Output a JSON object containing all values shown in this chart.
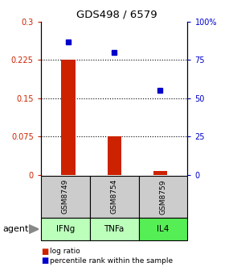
{
  "title": "GDS498 / 6579",
  "samples": [
    "GSM8749",
    "GSM8754",
    "GSM8759"
  ],
  "agents": [
    "IFNg",
    "TNFa",
    "IL4"
  ],
  "log_ratios": [
    0.225,
    0.075,
    0.008
  ],
  "percentile_ranks": [
    87,
    80,
    55
  ],
  "ylim_left": [
    0,
    0.3
  ],
  "ylim_right": [
    0,
    100
  ],
  "yticks_left": [
    0,
    0.075,
    0.15,
    0.225,
    0.3
  ],
  "ytick_labels_left": [
    "0",
    "0.075",
    "0.15",
    "0.225",
    "0.3"
  ],
  "yticks_right": [
    0,
    25,
    50,
    75,
    100
  ],
  "ytick_labels_right": [
    "0",
    "25",
    "50",
    "75",
    "100%"
  ],
  "bar_color": "#cc2200",
  "dot_color": "#0000cc",
  "sample_box_color": "#cccccc",
  "agent_box_colors": [
    "#bbffbb",
    "#bbffbb",
    "#55ee55"
  ],
  "legend_items": [
    {
      "color": "#cc2200",
      "label": " log ratio"
    },
    {
      "color": "#0000cc",
      "label": " percentile rank within the sample"
    }
  ],
  "bar_width": 0.3
}
